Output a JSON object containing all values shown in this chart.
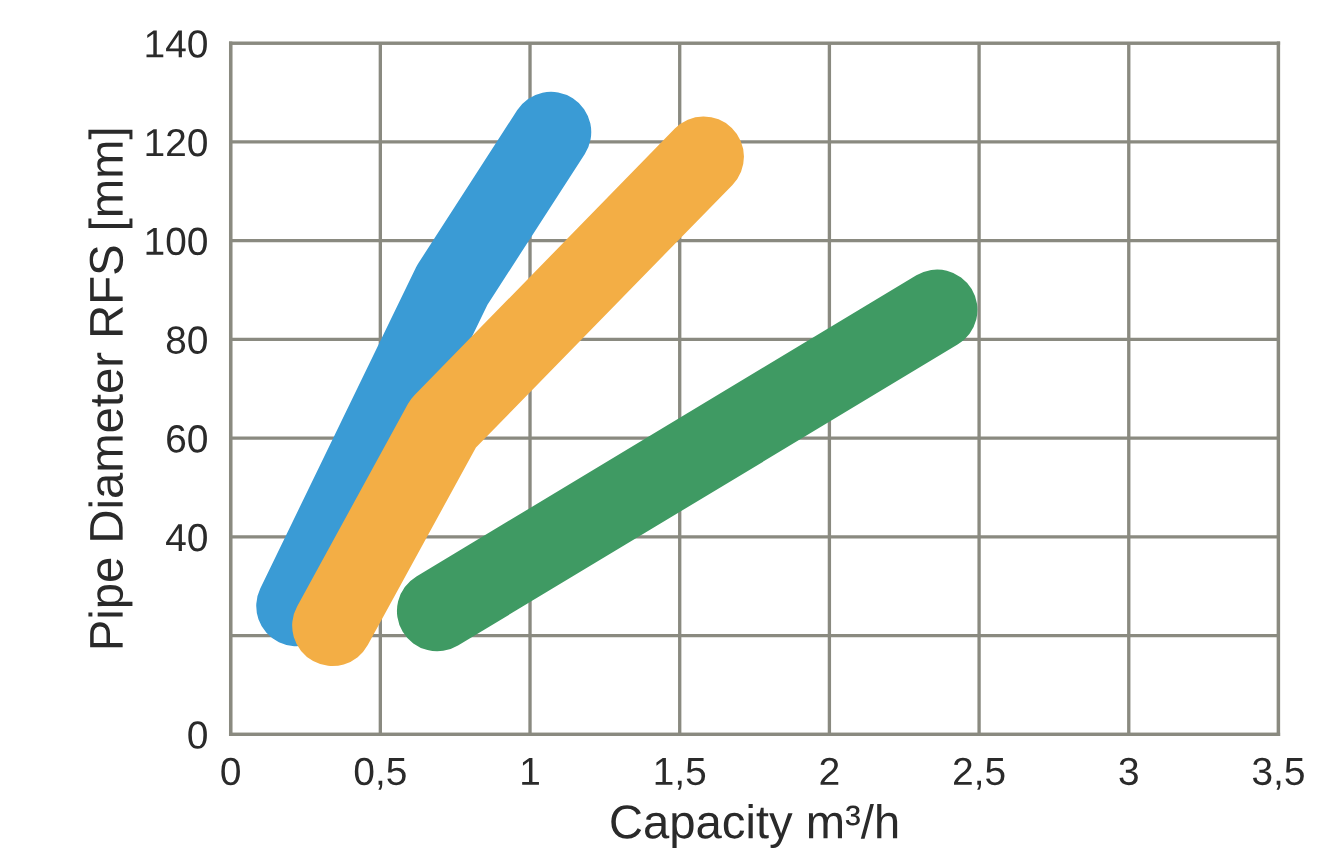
{
  "chart_data": {
    "type": "line",
    "xlabel": "Capacity m³/h",
    "ylabel": "Pipe Diameter RFS [mm]",
    "series": [
      {
        "color": "#3a9bd5",
        "x": [
          0.22,
          0.74,
          1.07
        ],
        "values": [
          26,
          91,
          122
        ]
      },
      {
        "color": "#f3ae45",
        "x": [
          0.34,
          0.71,
          1.58
        ],
        "values": [
          22,
          63,
          117
        ]
      },
      {
        "color": "#3f9a63",
        "x": [
          0.69,
          2.36
        ],
        "values": [
          25,
          86
        ]
      }
    ],
    "xlim": [
      0,
      3.5
    ],
    "xticks": [
      0,
      {
        "value": 0.5,
        "label": "0,5"
      },
      1,
      {
        "value": 1.5,
        "label": "1,5"
      },
      2,
      {
        "value": 2.5,
        "label": "2,5"
      },
      3,
      {
        "value": 3.5,
        "label": "3,5"
      }
    ],
    "ylim": [
      0,
      140
    ],
    "yticks": [
      0,
      {
        "value": 20,
        "label": null
      },
      40,
      60,
      80,
      100,
      120,
      140
    ],
    "grid": true,
    "marker": "none",
    "line_style": "solid"
  }
}
